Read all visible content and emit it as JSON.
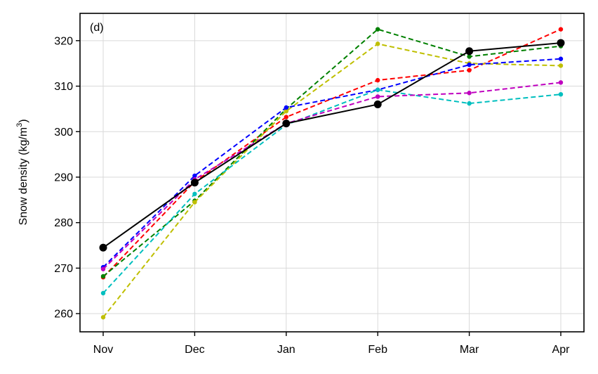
{
  "chart_data": {
    "type": "line",
    "panel_label": "(d)",
    "title": "",
    "xlabel": "",
    "ylabel": "Snow density (kg/m",
    "ylabel_sup": "3",
    "ylabel_close": ")",
    "categories": [
      "Nov",
      "Dec",
      "Jan",
      "Feb",
      "Mar",
      "Apr"
    ],
    "ylim": [
      256,
      326
    ],
    "yticks": [
      260,
      270,
      280,
      290,
      300,
      310,
      320
    ],
    "grid": true,
    "series": [
      {
        "color": "#ff0000",
        "style": "dashed",
        "values": [
          268.0,
          289.0,
          303.2,
          311.3,
          313.5,
          322.5
        ]
      },
      {
        "color": "#008000",
        "style": "dashed",
        "values": [
          268.2,
          284.8,
          305.0,
          322.5,
          316.5,
          318.8
        ]
      },
      {
        "color": "#bfbf00",
        "style": "dashed",
        "values": [
          259.2,
          284.5,
          304.5,
          319.3,
          315.0,
          314.5
        ]
      },
      {
        "color": "#0000ff",
        "style": "dashed",
        "values": [
          270.2,
          290.3,
          305.3,
          309.2,
          314.7,
          316.0
        ]
      },
      {
        "color": "#00bfbf",
        "style": "dashed",
        "values": [
          264.5,
          286.3,
          301.5,
          309.2,
          306.2,
          308.2
        ]
      },
      {
        "color": "#bf00bf",
        "style": "dashed",
        "values": [
          269.8,
          289.5,
          301.8,
          307.7,
          308.5,
          310.8
        ]
      },
      {
        "color": "#000000",
        "style": "solid",
        "values": [
          274.5,
          288.8,
          301.8,
          306.0,
          317.7,
          319.5
        ]
      }
    ]
  }
}
